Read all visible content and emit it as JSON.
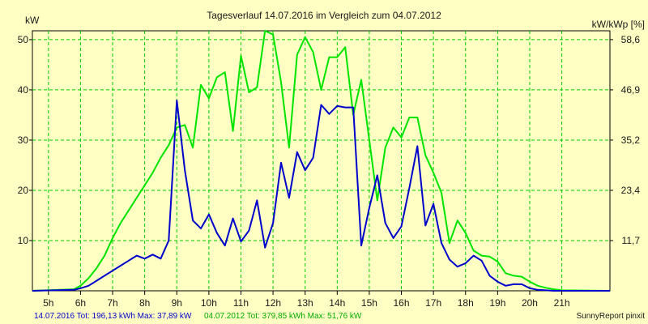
{
  "chart_data": {
    "type": "line",
    "title": "Tagesverlauf 14.07.2016 im Vergleich zum 04.07.2012",
    "ylabel_left": "kW",
    "ylabel_right": "kW/kWp [%]",
    "x_ticks": [
      "5h",
      "6h",
      "7h",
      "8h",
      "9h",
      "10h",
      "11h",
      "12h",
      "13h",
      "14h",
      "15h",
      "16h",
      "17h",
      "18h",
      "19h",
      "20h",
      "21h"
    ],
    "x_tick_values": [
      5,
      6,
      7,
      8,
      9,
      10,
      11,
      12,
      13,
      14,
      15,
      16,
      17,
      18,
      19,
      20,
      21
    ],
    "xlim": [
      4.5,
      22.5
    ],
    "ylim_left": [
      0,
      51.76
    ],
    "y_ticks_left": [
      10,
      20,
      30,
      40,
      50
    ],
    "y_ticks_right": [
      "11,7",
      "23,4",
      "35,2",
      "46,9",
      "58,6"
    ],
    "grid": true,
    "colors": {
      "series1": "#0000cc",
      "series2": "#00e400",
      "grid": "#00cc00",
      "background": "#ffffc4",
      "axis": "#000000"
    },
    "series": [
      {
        "name": "14.07.2016",
        "color": "#0000cc",
        "x": [
          4.5,
          5.8,
          6.0,
          6.25,
          6.5,
          6.75,
          7.0,
          7.25,
          7.5,
          7.75,
          8.0,
          8.25,
          8.5,
          8.75,
          9.0,
          9.25,
          9.5,
          9.75,
          10.0,
          10.25,
          10.5,
          10.75,
          11.0,
          11.25,
          11.5,
          11.75,
          12.0,
          12.25,
          12.5,
          12.75,
          13.0,
          13.25,
          13.5,
          13.75,
          14.0,
          14.25,
          14.5,
          14.75,
          15.0,
          15.25,
          15.5,
          15.75,
          16.0,
          16.25,
          16.5,
          16.75,
          17.0,
          17.25,
          17.5,
          17.75,
          18.0,
          18.25,
          18.5,
          18.75,
          19.0,
          19.25,
          19.5,
          19.75,
          20.0,
          20.25,
          20.5,
          20.75,
          21.0,
          22.5
        ],
        "y": [
          0,
          0.2,
          0.5,
          1.0,
          2.0,
          3.0,
          4.0,
          5.0,
          6.0,
          7.0,
          6.4,
          7.2,
          6.4,
          10.0,
          37.9,
          24.0,
          14.0,
          12.4,
          15.2,
          11.5,
          9.0,
          14.4,
          9.8,
          12.0,
          18.0,
          8.6,
          13.5,
          25.5,
          18.5,
          27.6,
          24.0,
          26.5,
          37.0,
          35.2,
          36.8,
          36.5,
          36.5,
          9.0,
          16.5,
          23.0,
          13.5,
          10.5,
          12.8,
          20.5,
          28.8,
          13.0,
          17.3,
          9.5,
          6.2,
          4.8,
          5.5,
          7.0,
          6.0,
          3.0,
          1.8,
          1.0,
          1.3,
          1.3,
          0.5,
          0.2,
          0.1,
          0,
          0,
          0
        ]
      },
      {
        "name": "04.07.2012",
        "color": "#00e400",
        "x": [
          4.5,
          5.8,
          6.0,
          6.25,
          6.5,
          6.75,
          7.0,
          7.25,
          7.5,
          7.75,
          8.0,
          8.25,
          8.5,
          8.75,
          9.0,
          9.25,
          9.5,
          9.75,
          10.0,
          10.25,
          10.5,
          10.75,
          11.0,
          11.25,
          11.5,
          11.75,
          12.0,
          12.25,
          12.5,
          12.75,
          13.0,
          13.25,
          13.5,
          13.75,
          14.0,
          14.25,
          14.5,
          14.75,
          15.0,
          15.25,
          15.5,
          15.75,
          16.0,
          16.25,
          16.5,
          16.75,
          17.0,
          17.25,
          17.5,
          17.75,
          18.0,
          18.25,
          18.5,
          18.75,
          19.0,
          19.25,
          19.5,
          19.75,
          20.0,
          20.25,
          20.5,
          20.75,
          21.0,
          22.5
        ],
        "y": [
          0,
          0.3,
          1.0,
          2.5,
          4.5,
          7.0,
          10.5,
          13.5,
          16.0,
          18.5,
          21.0,
          23.5,
          26.5,
          29.0,
          32.5,
          33.0,
          28.5,
          41.0,
          38.3,
          42.5,
          43.5,
          31.8,
          46.8,
          39.5,
          40.5,
          51.76,
          51.0,
          41.5,
          28.5,
          47.0,
          50.5,
          47.5,
          40.0,
          46.5,
          46.5,
          48.5,
          35.0,
          42.0,
          30.0,
          18.0,
          28.5,
          32.5,
          30.5,
          34.5,
          34.5,
          27.0,
          23.5,
          19.5,
          9.5,
          14.0,
          11.5,
          8.0,
          7.0,
          6.8,
          5.8,
          3.5,
          3.0,
          2.8,
          1.8,
          1.0,
          0.6,
          0.3,
          0.1,
          0
        ]
      }
    ],
    "footer": {
      "series1": "14.07.2016 Tot: 196,13 kWh Max: 37,89 kW",
      "series2": "04.07.2012 Tot: 379,85 kWh Max: 51,76 kW",
      "credit": "SunnyReport pinxit"
    }
  }
}
